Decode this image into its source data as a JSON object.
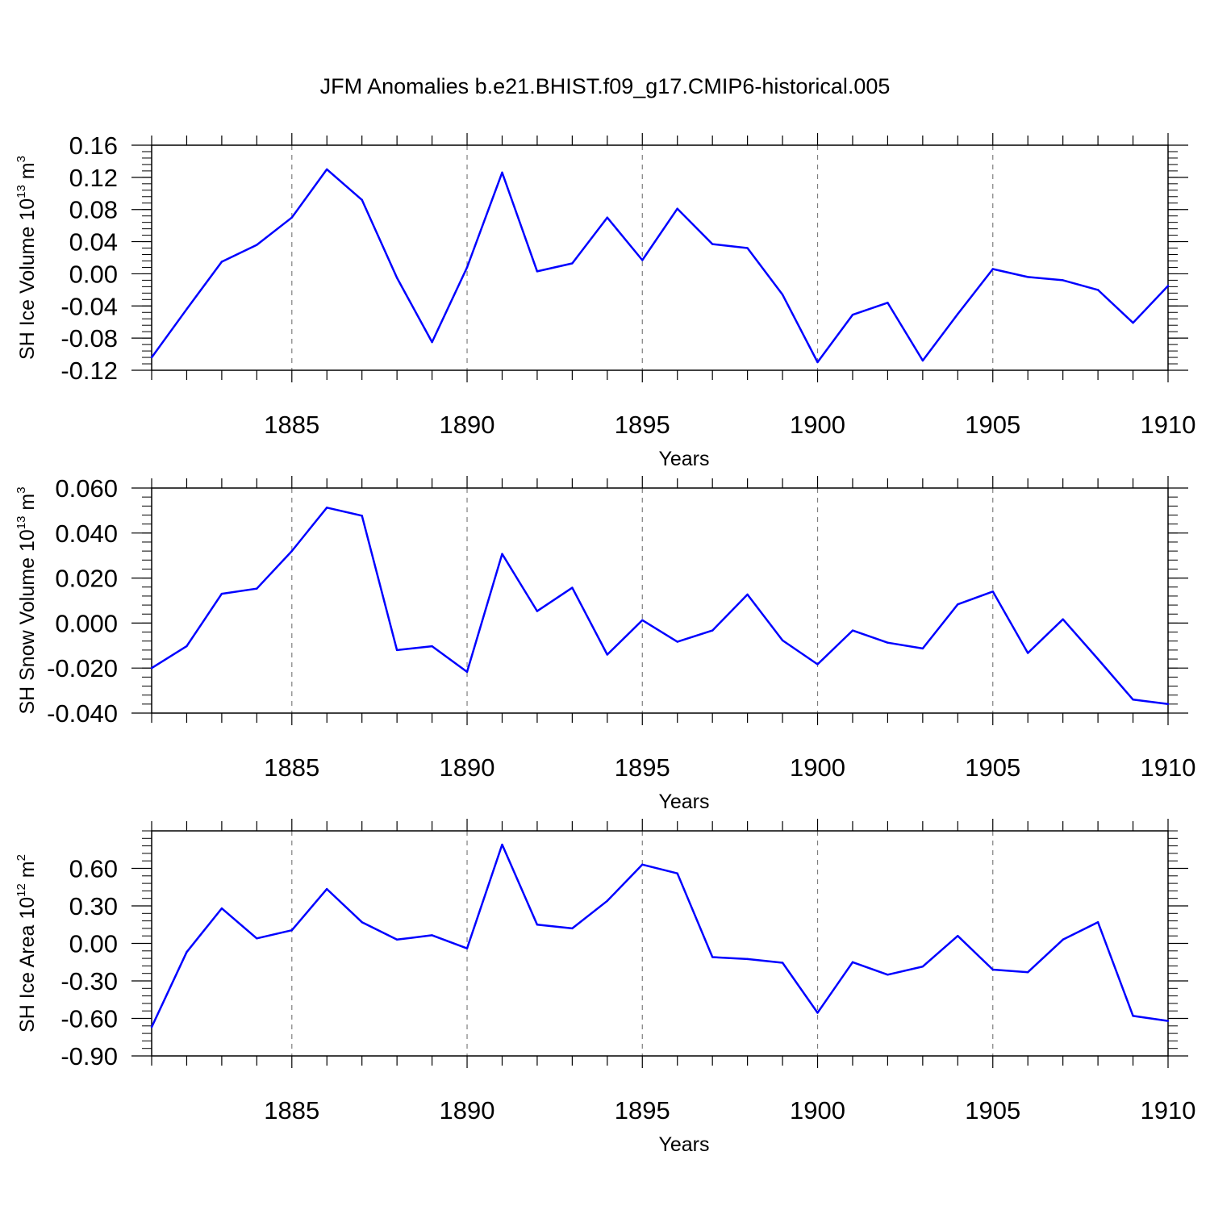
{
  "title": "JFM Anomalies b.e21.BHIST.f09_g17.CMIP6-historical.005",
  "colors": {
    "line": "#0000ff",
    "axis": "#000000",
    "grid": "#7f7f7f"
  },
  "chart_data": [
    {
      "type": "line",
      "name": "ice-volume",
      "ylabel": {
        "text": "SH Ice Volume 10",
        "exp1": "13",
        "unit": " m",
        "exp2": "3"
      },
      "xlabel": "Years",
      "xlim": [
        1881,
        1910
      ],
      "ylim": [
        -0.12,
        0.16
      ],
      "yticks": [
        -0.12,
        -0.08,
        -0.04,
        0.0,
        0.04,
        0.08,
        0.12,
        0.16
      ],
      "ytick_labels": [
        "-0.12",
        "-0.08",
        "-0.04",
        "0.00",
        "0.04",
        "0.08",
        "0.12",
        "0.16"
      ],
      "xticks": [
        1885,
        1890,
        1895,
        1900,
        1905,
        1910
      ],
      "xtick_labels": [
        "1885",
        "1890",
        "1895",
        "1900",
        "1905",
        "1910"
      ],
      "x": [
        1881,
        1882,
        1883,
        1884,
        1885,
        1886,
        1887,
        1888,
        1889,
        1890,
        1891,
        1892,
        1893,
        1894,
        1895,
        1896,
        1897,
        1898,
        1899,
        1900,
        1901,
        1902,
        1903,
        1904,
        1905,
        1906,
        1907,
        1908,
        1909,
        1910
      ],
      "values": [
        -0.104,
        -0.044,
        0.015,
        0.036,
        0.07,
        0.13,
        0.092,
        -0.005,
        -0.085,
        0.008,
        0.126,
        0.003,
        0.013,
        0.07,
        0.017,
        0.081,
        0.037,
        0.032,
        -0.026,
        -0.11,
        -0.051,
        -0.036,
        -0.108,
        -0.05,
        0.006,
        -0.004,
        -0.008,
        -0.02,
        -0.061,
        -0.015
      ]
    },
    {
      "type": "line",
      "name": "snow-volume",
      "ylabel": {
        "text": "SH Snow Volume 10",
        "exp1": "13",
        "unit": " m",
        "exp2": "3"
      },
      "xlabel": "Years",
      "xlim": [
        1881,
        1910
      ],
      "ylim": [
        -0.04,
        0.06
      ],
      "yticks": [
        -0.04,
        -0.02,
        0.0,
        0.02,
        0.04,
        0.06
      ],
      "ytick_labels": [
        "-0.040",
        "-0.020",
        "0.000",
        "0.020",
        "0.040",
        "0.060"
      ],
      "xticks": [
        1885,
        1890,
        1895,
        1900,
        1905,
        1910
      ],
      "xtick_labels": [
        "1885",
        "1890",
        "1895",
        "1900",
        "1905",
        "1910"
      ],
      "x": [
        1881,
        1882,
        1883,
        1884,
        1885,
        1886,
        1887,
        1888,
        1889,
        1890,
        1891,
        1892,
        1893,
        1894,
        1895,
        1896,
        1897,
        1898,
        1899,
        1900,
        1901,
        1902,
        1903,
        1904,
        1905,
        1906,
        1907,
        1908,
        1909,
        1910
      ],
      "values": [
        -0.02,
        -0.0103,
        0.013,
        0.0153,
        0.032,
        0.0513,
        0.0477,
        -0.012,
        -0.0103,
        -0.0217,
        0.0307,
        0.0053,
        0.0157,
        -0.014,
        0.0013,
        -0.0083,
        -0.0033,
        0.0127,
        -0.0077,
        -0.0183,
        -0.0033,
        -0.0087,
        -0.0113,
        0.0083,
        0.014,
        -0.0133,
        0.0017,
        -0.016,
        -0.034,
        -0.036
      ]
    },
    {
      "type": "line",
      "name": "ice-area",
      "ylabel": {
        "text": "SH Ice Area 10",
        "exp1": "12",
        "unit": " m",
        "exp2": "2"
      },
      "xlabel": "Years",
      "xlim": [
        1881,
        1910
      ],
      "ylim": [
        -0.9,
        0.9
      ],
      "yticks": [
        -0.9,
        -0.6,
        -0.3,
        0.0,
        0.3,
        0.6
      ],
      "ytick_labels": [
        "-0.90",
        "-0.60",
        "-0.30",
        "0.00",
        "0.30",
        "0.60"
      ],
      "xticks": [
        1885,
        1890,
        1895,
        1900,
        1905,
        1910
      ],
      "xtick_labels": [
        "1885",
        "1890",
        "1895",
        "1900",
        "1905",
        "1910"
      ],
      "x": [
        1881,
        1882,
        1883,
        1884,
        1885,
        1886,
        1887,
        1888,
        1889,
        1890,
        1891,
        1892,
        1893,
        1894,
        1895,
        1896,
        1897,
        1898,
        1899,
        1900,
        1901,
        1902,
        1903,
        1904,
        1905,
        1906,
        1907,
        1908,
        1909,
        1910
      ],
      "values": [
        -0.67,
        -0.07,
        0.28,
        0.04,
        0.105,
        0.435,
        0.17,
        0.03,
        0.065,
        -0.04,
        0.79,
        0.15,
        0.12,
        0.34,
        0.63,
        0.56,
        -0.11,
        -0.125,
        -0.155,
        -0.555,
        -0.15,
        -0.25,
        -0.185,
        0.06,
        -0.21,
        -0.23,
        0.03,
        0.17,
        -0.58,
        -0.62
      ]
    }
  ]
}
